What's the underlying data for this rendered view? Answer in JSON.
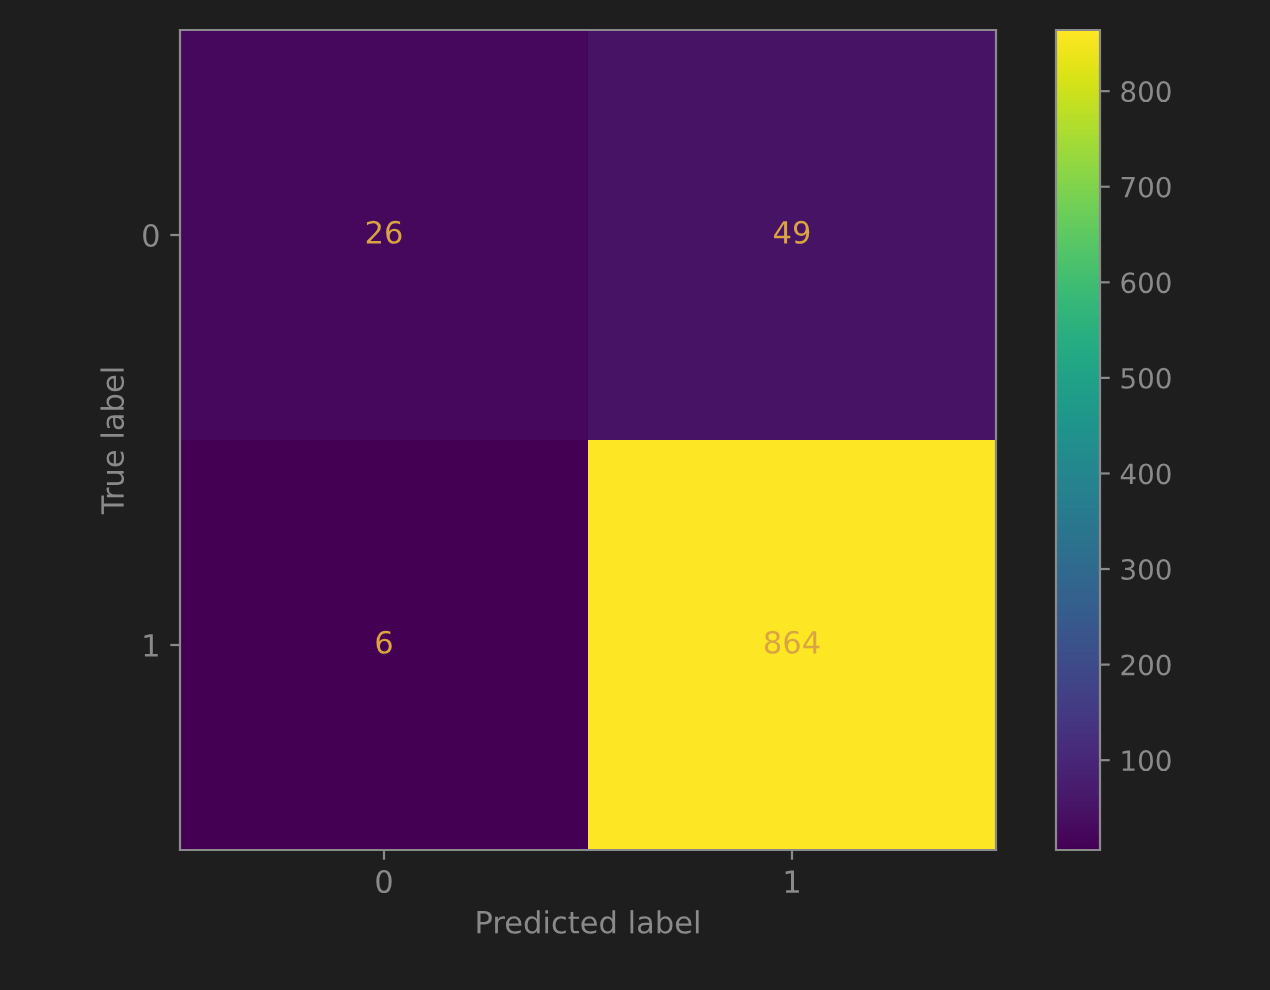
{
  "chart_data": {
    "type": "heatmap",
    "xlabel": "Predicted label",
    "ylabel": "True label",
    "categories": [
      "0",
      "1"
    ],
    "y_categories": [
      "0",
      "1"
    ],
    "cells": [
      [
        26,
        49
      ],
      [
        6,
        864
      ]
    ],
    "data_labels": true,
    "clim": [
      6,
      864
    ],
    "cticks": [
      100,
      200,
      300,
      400,
      500,
      600,
      700,
      800
    ]
  }
}
